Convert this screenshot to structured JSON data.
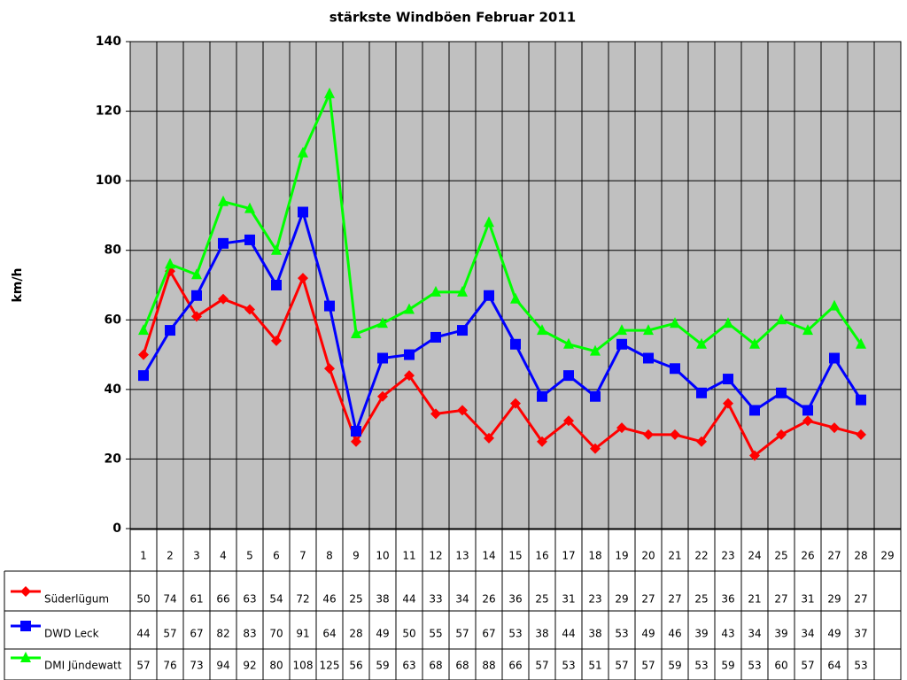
{
  "chart_data": {
    "type": "line",
    "title": "stärkste Windböen Februar 2011",
    "y_label": "km/h",
    "categories": [
      1,
      2,
      3,
      4,
      5,
      6,
      7,
      8,
      9,
      10,
      11,
      12,
      13,
      14,
      15,
      16,
      17,
      18,
      19,
      20,
      21,
      22,
      23,
      24,
      25,
      26,
      27,
      28,
      29
    ],
    "series": [
      {
        "name": "Süderlügum",
        "color": "#ff0000",
        "marker": "diamond",
        "values": [
          50,
          74,
          61,
          66,
          63,
          54,
          72,
          46,
          25,
          38,
          44,
          33,
          34,
          26,
          36,
          25,
          31,
          23,
          29,
          27,
          27,
          25,
          36,
          21,
          27,
          31,
          29,
          27,
          null
        ]
      },
      {
        "name": "DWD Leck",
        "color": "#0000ff",
        "marker": "square",
        "values": [
          44,
          57,
          67,
          82,
          83,
          70,
          91,
          64,
          28,
          49,
          50,
          55,
          57,
          67,
          53,
          38,
          44,
          38,
          53,
          49,
          46,
          39,
          43,
          34,
          39,
          34,
          49,
          37,
          null
        ]
      },
      {
        "name": "DMI Jündewatt",
        "color": "#00ff00",
        "marker": "triangle",
        "values": [
          57,
          76,
          73,
          94,
          92,
          80,
          108,
          125,
          56,
          59,
          63,
          68,
          68,
          88,
          66,
          57,
          53,
          51,
          57,
          57,
          59,
          53,
          59,
          53,
          60,
          57,
          64,
          53,
          null
        ]
      }
    ],
    "ylim": [
      0,
      140
    ],
    "yticks": [
      0,
      20,
      40,
      60,
      80,
      100,
      120,
      140
    ],
    "grid": true,
    "data_table": true
  }
}
